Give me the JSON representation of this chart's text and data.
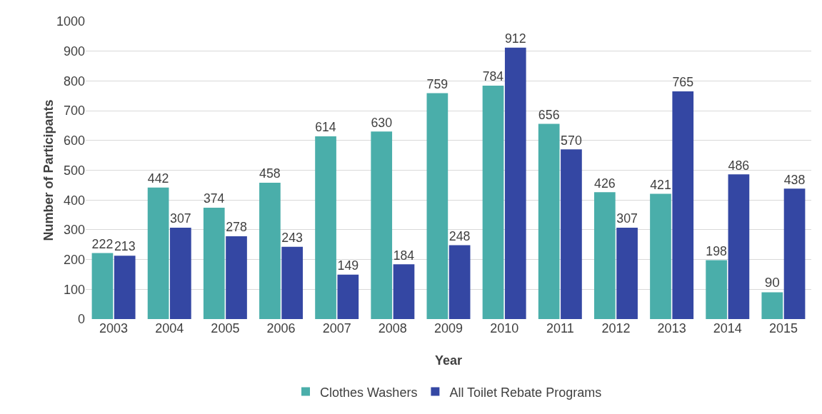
{
  "chart_data": {
    "type": "bar",
    "xlabel": "Year",
    "ylabel": "Number of Participants",
    "categories": [
      "2003",
      "2004",
      "2005",
      "2006",
      "2007",
      "2008",
      "2009",
      "2010",
      "2011",
      "2012",
      "2013",
      "2014",
      "2015"
    ],
    "series": [
      {
        "name": "Clothes Washers",
        "color": "#4aaeaa",
        "values": [
          222,
          442,
          374,
          458,
          614,
          630,
          759,
          784,
          656,
          426,
          421,
          198,
          90
        ]
      },
      {
        "name": "All Toilet Rebate Programs",
        "color": "#3447a3",
        "values": [
          213,
          307,
          278,
          243,
          149,
          184,
          248,
          912,
          570,
          307,
          765,
          486,
          438
        ]
      }
    ],
    "ylim": [
      0,
      1000
    ],
    "yticks": [
      0,
      100,
      200,
      300,
      400,
      500,
      600,
      700,
      800,
      900,
      1000
    ],
    "grid": "y",
    "legend": "bottom",
    "data_labels": true
  }
}
